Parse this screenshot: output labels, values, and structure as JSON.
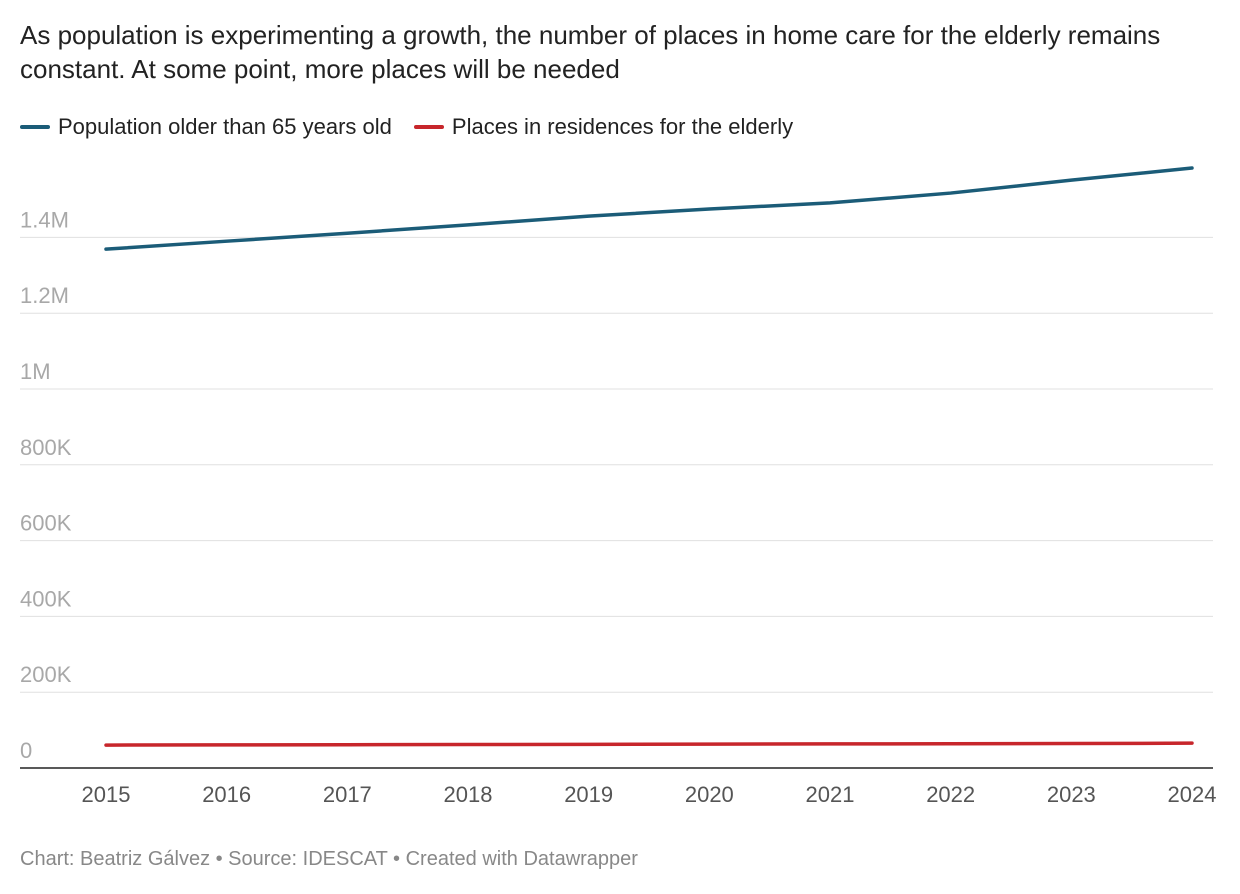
{
  "chart_data": {
    "type": "line",
    "title": "As population is experimenting a growth, the number of places in home care for the elderly remains constant. At some point, more places will be needed",
    "footer": "Chart: Beatriz Gálvez • Source: IDESCAT • Created with Datawrapper",
    "categories": [
      "2015",
      "2016",
      "2017",
      "2018",
      "2019",
      "2020",
      "2021",
      "2022",
      "2023",
      "2024"
    ],
    "series": [
      {
        "name": "Population older than 65 years old",
        "color": "#1b5c78",
        "values": [
          1369000,
          1390000,
          1411000,
          1433000,
          1456000,
          1475000,
          1491000,
          1517000,
          1551000,
          1583000
        ]
      },
      {
        "name": "Places in residences for the elderly",
        "color": "#c7262b",
        "values": [
          60500,
          61000,
          61500,
          62000,
          62500,
          63000,
          63500,
          64000,
          64500,
          65500
        ]
      }
    ],
    "ylim": [
      0,
      1600000
    ],
    "yticks": [
      0,
      {
        "value": 200000,
        "label": "200K"
      },
      {
        "value": 400000,
        "label": "400K"
      },
      {
        "value": 600000,
        "label": "600K"
      },
      {
        "value": 800000,
        "label": "800K"
      },
      {
        "value": 1000000,
        "label": "1M"
      },
      {
        "value": 1200000,
        "label": "1.2M"
      },
      {
        "value": 1400000,
        "label": "1.4M"
      }
    ],
    "grid": true
  }
}
